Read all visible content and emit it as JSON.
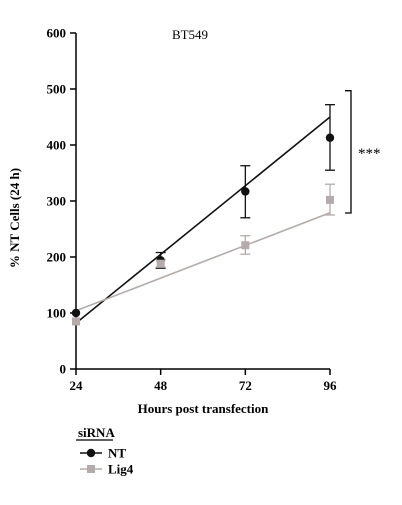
{
  "chart_data": {
    "type": "line",
    "title": "BT549",
    "xlabel": "Hours post transfection",
    "ylabel": "% NT Cells (24 h)",
    "x": [
      24,
      48,
      72,
      96
    ],
    "xticks": [
      24,
      48,
      72,
      96
    ],
    "xlim": [
      24,
      96
    ],
    "yticks": [
      0,
      100,
      200,
      300,
      400,
      500,
      600
    ],
    "ylim": [
      0,
      600
    ],
    "grid": false,
    "legend": {
      "title": "siRNA",
      "placement": "bottom-left"
    },
    "series": [
      {
        "name": "NT",
        "color": "#111111",
        "marker": "circle",
        "values": [
          100,
          194,
          317,
          413
        ],
        "error_low": [
          100,
          180,
          270,
          355
        ],
        "error_high": [
          100,
          208,
          363,
          472
        ],
        "fit": [
          82,
          205,
          327,
          450
        ]
      },
      {
        "name": "Lig4",
        "color": "#b4abaa",
        "marker": "square",
        "values": [
          85,
          188,
          221,
          302
        ],
        "error_low": [
          85,
          182,
          205,
          275
        ],
        "error_high": [
          85,
          195,
          238,
          330
        ],
        "fit": [
          104,
          162,
          221,
          279
        ]
      }
    ],
    "annotations": [
      {
        "text": "***",
        "between_series": [
          "NT",
          "Lig4"
        ],
        "at_x": 96
      }
    ]
  }
}
